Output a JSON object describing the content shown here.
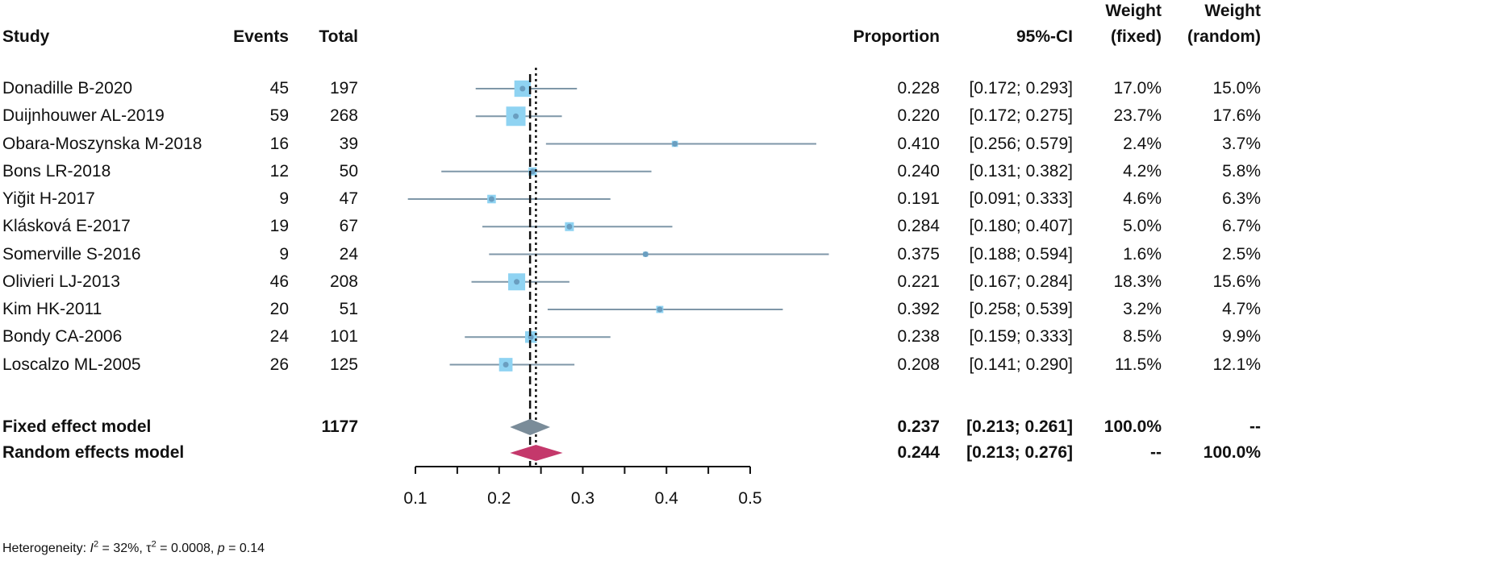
{
  "headers": {
    "study": "Study",
    "events": "Events",
    "total": "Total",
    "proportion": "Proportion",
    "ci": "95%-CI",
    "weight_fixed_line1": "Weight",
    "weight_fixed_line2": "(fixed)",
    "weight_random_line1": "Weight",
    "weight_random_line2": "(random)"
  },
  "studies": [
    {
      "study": "Donadille B-2020",
      "events": "45",
      "total": "197",
      "proportion": "0.228",
      "ci": "[0.172; 0.293]",
      "weight_fixed": "17.0%",
      "weight_random": "15.0%"
    },
    {
      "study": "Duijnhouwer AL-2019",
      "events": "59",
      "total": "268",
      "proportion": "0.220",
      "ci": "[0.172; 0.275]",
      "weight_fixed": "23.7%",
      "weight_random": "17.6%"
    },
    {
      "study": "Obara-Moszynska M-2018",
      "events": "16",
      "total": "39",
      "proportion": "0.410",
      "ci": "[0.256; 0.579]",
      "weight_fixed": "2.4%",
      "weight_random": "3.7%"
    },
    {
      "study": "Bons LR-2018",
      "events": "12",
      "total": "50",
      "proportion": "0.240",
      "ci": "[0.131; 0.382]",
      "weight_fixed": "4.2%",
      "weight_random": "5.8%"
    },
    {
      "study": "Yiğit H-2017",
      "events": "9",
      "total": "47",
      "proportion": "0.191",
      "ci": "[0.091; 0.333]",
      "weight_fixed": "4.6%",
      "weight_random": "6.3%"
    },
    {
      "study": "Klásková E-2017",
      "events": "19",
      "total": "67",
      "proportion": "0.284",
      "ci": "[0.180; 0.407]",
      "weight_fixed": "5.0%",
      "weight_random": "6.7%"
    },
    {
      "study": "Somerville S-2016",
      "events": "9",
      "total": "24",
      "proportion": "0.375",
      "ci": "[0.188; 0.594]",
      "weight_fixed": "1.6%",
      "weight_random": "2.5%"
    },
    {
      "study": "Olivieri LJ-2013",
      "events": "46",
      "total": "208",
      "proportion": "0.221",
      "ci": "[0.167; 0.284]",
      "weight_fixed": "18.3%",
      "weight_random": "15.6%"
    },
    {
      "study": "Kim HK-2011",
      "events": "20",
      "total": "51",
      "proportion": "0.392",
      "ci": "[0.258; 0.539]",
      "weight_fixed": "3.2%",
      "weight_random": "4.7%"
    },
    {
      "study": "Bondy CA-2006",
      "events": "24",
      "total": "101",
      "proportion": "0.238",
      "ci": "[0.159; 0.333]",
      "weight_fixed": "8.5%",
      "weight_random": "9.9%"
    },
    {
      "study": "Loscalzo ML-2005",
      "events": "26",
      "total": "125",
      "proportion": "0.208",
      "ci": "[0.141; 0.290]",
      "weight_fixed": "11.5%",
      "weight_random": "12.1%"
    }
  ],
  "fixed": {
    "label": "Fixed effect model",
    "total": "1177",
    "proportion": "0.237",
    "ci": "[0.213; 0.261]",
    "weight_fixed": "100.0%",
    "weight_random": "--"
  },
  "random": {
    "label": "Random effects model",
    "proportion": "0.244",
    "ci": "[0.213; 0.276]",
    "weight_fixed": "--",
    "weight_random": "100.0%"
  },
  "heterogeneity": {
    "prefix": "Heterogeneity: ",
    "i2_sym": "I",
    "i2_exp": "2",
    "i2_val": " = 32%, ",
    "tau_sym": "τ",
    "tau_exp": "2",
    "tau_val": " = 0.0008, ",
    "p_sym": "p",
    "p_val": " = 0.14"
  },
  "colors": {
    "ci_line": "#7f97a8",
    "square": "#8fd3f2",
    "point": "#6a9ec0",
    "fixed_diamond": "#7a8c99",
    "random_diamond": "#c4386b",
    "ref_line": "#111111"
  },
  "chart_data": {
    "type": "forest",
    "x_ticks": [
      0.1,
      0.2,
      0.3,
      0.4,
      0.5
    ],
    "x_tick_labels": [
      "0.1",
      "0.2",
      "0.3",
      "0.4",
      "0.5"
    ],
    "xlim": [
      0.1,
      0.5
    ],
    "studies": [
      {
        "est": 0.228,
        "lo": 0.172,
        "hi": 0.293,
        "w": 17.0
      },
      {
        "est": 0.22,
        "lo": 0.172,
        "hi": 0.275,
        "w": 23.7
      },
      {
        "est": 0.41,
        "lo": 0.256,
        "hi": 0.579,
        "w": 2.4
      },
      {
        "est": 0.24,
        "lo": 0.131,
        "hi": 0.382,
        "w": 4.2
      },
      {
        "est": 0.191,
        "lo": 0.091,
        "hi": 0.333,
        "w": 4.6
      },
      {
        "est": 0.284,
        "lo": 0.18,
        "hi": 0.407,
        "w": 5.0
      },
      {
        "est": 0.375,
        "lo": 0.188,
        "hi": 0.594,
        "w": 1.6
      },
      {
        "est": 0.221,
        "lo": 0.167,
        "hi": 0.284,
        "w": 18.3
      },
      {
        "est": 0.392,
        "lo": 0.258,
        "hi": 0.539,
        "w": 3.2
      },
      {
        "est": 0.238,
        "lo": 0.159,
        "hi": 0.333,
        "w": 8.5
      },
      {
        "est": 0.208,
        "lo": 0.141,
        "hi": 0.29,
        "w": 11.5
      }
    ],
    "fixed": {
      "est": 0.237,
      "lo": 0.213,
      "hi": 0.261
    },
    "random": {
      "est": 0.244,
      "lo": 0.213,
      "hi": 0.276
    }
  }
}
